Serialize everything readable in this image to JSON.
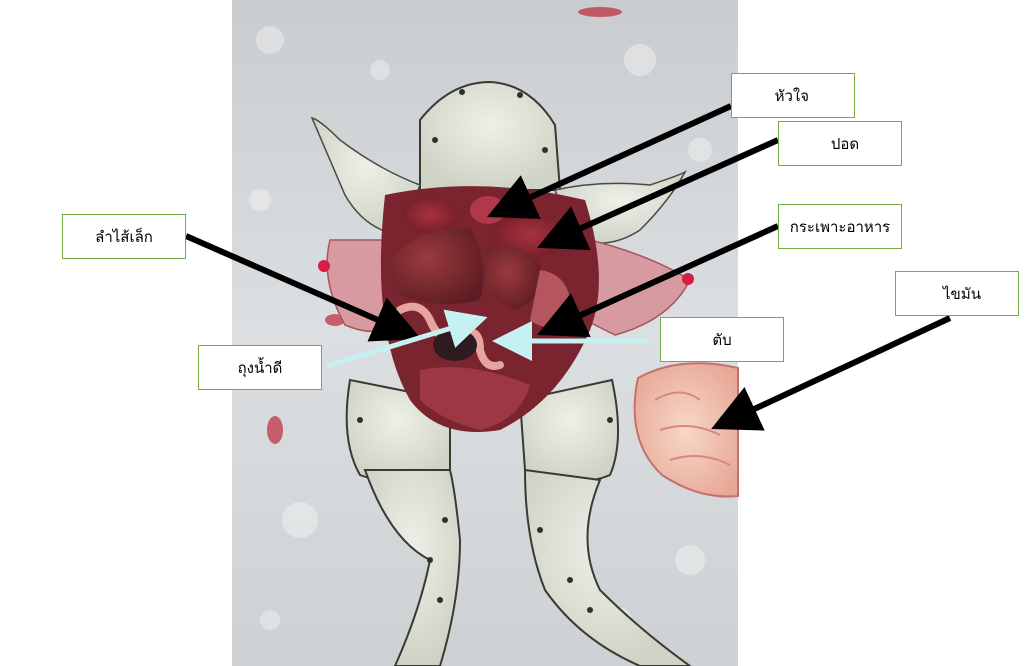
{
  "figure": {
    "subject": "frog-dissection-photo",
    "labels": {
      "heart": "หัวใจ",
      "lung": "ปอด",
      "stomach": "กระเพาะอาหาร",
      "small_intestine": "ลำไส้เล็ก",
      "fat_body": "ไขมัน",
      "liver": "ตับ",
      "gallbladder": "ถุงน้ำดี"
    }
  },
  "colors": {
    "label_border": "#70ad47",
    "black_arrow": "#000000",
    "light_arrow": "#c6f1f3",
    "backdrop": "#d6d9da"
  }
}
